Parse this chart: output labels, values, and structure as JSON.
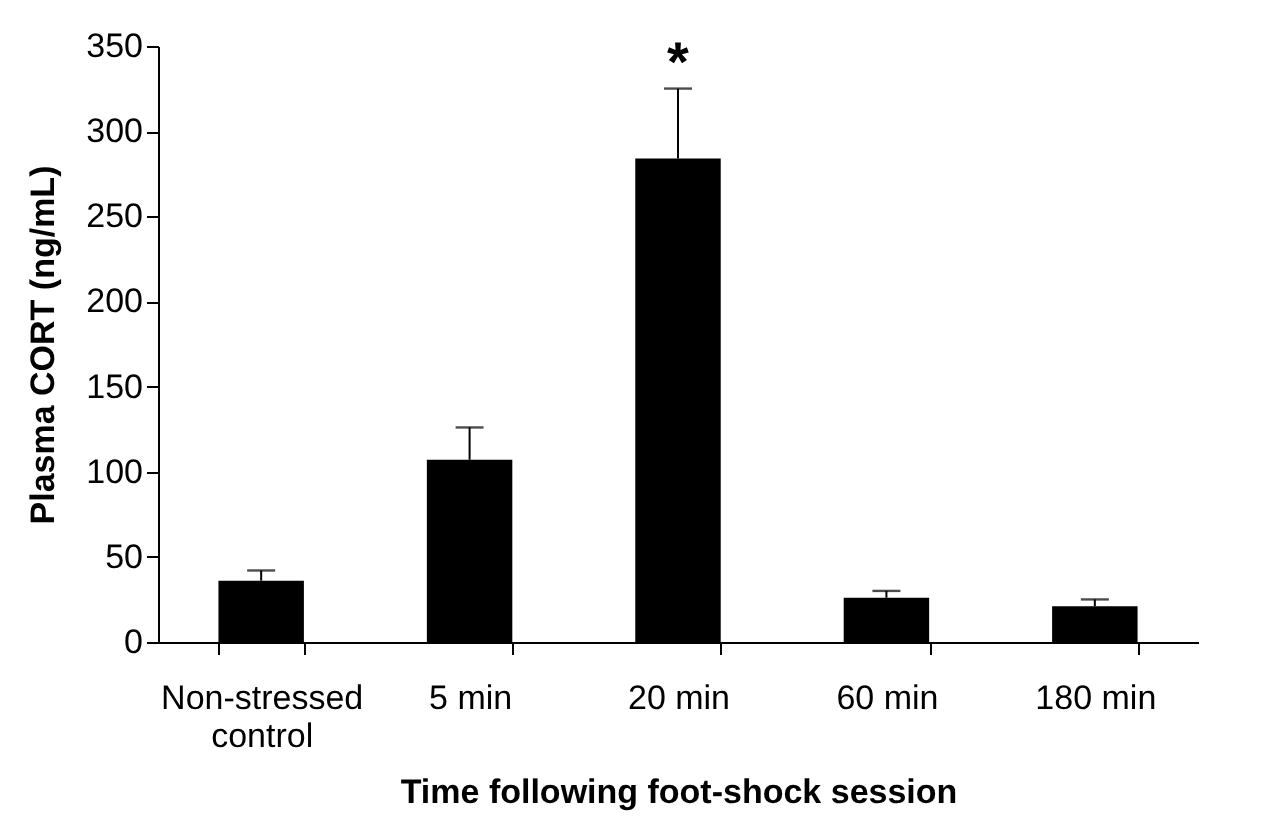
{
  "chart_data": {
    "type": "bar",
    "xlabel": "Time following foot-shock session",
    "ylabel": "Plasma CORT (ng/mL)",
    "categories": [
      "Non-stressed\ncontrol",
      "5 min",
      "20 min",
      "60 min",
      "180 min"
    ],
    "values": [
      36,
      107,
      284,
      26,
      21
    ],
    "color": "#000000",
    "errors": [
      [
        36,
        42
      ],
      [
        107,
        126
      ],
      [
        284,
        325
      ],
      [
        26,
        30
      ],
      [
        21,
        25
      ]
    ],
    "ylim": [
      0,
      350
    ],
    "yticks": [
      0,
      50,
      100,
      150,
      200,
      250,
      300,
      350
    ],
    "grid": false,
    "annotations": [
      {
        "text": "*",
        "x": "20 min",
        "y": 325
      }
    ]
  }
}
